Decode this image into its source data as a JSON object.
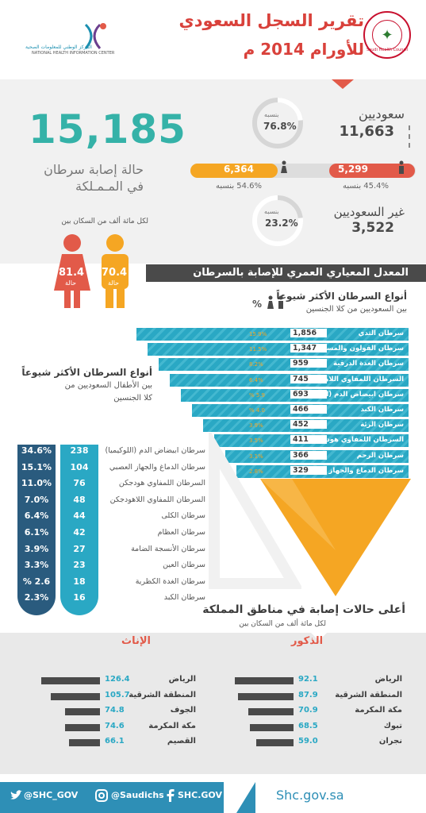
{
  "header": {
    "title_line1": "تقرير السجل السعودي",
    "title_line2": "للأورام  2014 م",
    "shc_logo_text": "Saudi Health Council",
    "nhic_text_ar": "المركز الوطني للمعلومات الصحية",
    "nhic_text_en": "NATIONAL HEALTH INFORMATION CENTER"
  },
  "summary": {
    "total": "15,185",
    "total_label_line1": "حالة إصابة سرطان",
    "total_label_line2": "في المـمـلكة",
    "saudi_label": "سعوديين",
    "saudi_value": "11,663",
    "saudi_pct_label": "بنسبه",
    "saudi_pct": "76.8%",
    "female_value": "6,364",
    "male_value": "5,299",
    "female_pct": "54.6% بنسبه",
    "male_pct": "45.4% بنسبه",
    "nonsaudi_label": "غير السعوديين",
    "nonsaudi_value": "3,522",
    "nonsaudi_pct_label": "بنسبه",
    "nonsaudi_pct": "23.2%",
    "per100k_label": "لكل مائة ألف من السكان بين",
    "female_rate": "81.4",
    "male_rate": "70.4",
    "rate_unit": "حالة"
  },
  "strip_title": "المعدل المعياري العمري للإصابة بالسرطان",
  "types": {
    "title": "أنواع السرطان الأكثر شيوعاً",
    "subtitle": "بين السعوديين من كلا الجنسين",
    "pct_sign": "%",
    "rows": [
      {
        "label": "سرطان الثدي",
        "value": "1,856",
        "pct": "15.9%"
      },
      {
        "label": "سرطان القولون والمستقيم",
        "value": "1,347",
        "pct": "11.5%"
      },
      {
        "label": "سرطان الغدة الدرقية",
        "value": "959",
        "pct": "8.2%"
      },
      {
        "label": "السرطان اللمفاوي اللاهودجكن",
        "value": "745",
        "pct": "6.4%"
      },
      {
        "label": "سرطان ابيضاض الدم (اللوكيميا)",
        "value": "693",
        "pct": "% 5.9"
      },
      {
        "label": "سرطان الكبد",
        "value": "466",
        "pct": "% 4.0"
      },
      {
        "label": "سرطان الرئة",
        "value": "452",
        "pct": "3.9%"
      },
      {
        "label": "السرطان اللمفاوي هودجكن",
        "value": "411",
        "pct": "3.5%"
      },
      {
        "label": "سرطان الرحم",
        "value": "366",
        "pct": "3.1%"
      },
      {
        "label": "سرطان الدماغ والجهاز العصبي",
        "value": "329",
        "pct": "2.8%"
      }
    ]
  },
  "kids": {
    "title": "أنواع السرطان الأكثر شيوعاً",
    "subtitle_line1": "بين الأطفال السعوديين من",
    "subtitle_line2": "كلا الجنسين",
    "rows": [
      {
        "label": "سرطان ابيضاض الدم (اللوكيميا)",
        "num": "238",
        "pct": "34.6%"
      },
      {
        "label": "سرطان الدماغ والجهاز العصبي",
        "num": "104",
        "pct": "15.1%"
      },
      {
        "label": "السرطان اللمفاوي هودجكن",
        "num": "76",
        "pct": "11.0%"
      },
      {
        "label": "السرطان اللمفاوي اللاهودجكن",
        "num": "48",
        "pct": "7.0%"
      },
      {
        "label": "سرطان الكلى",
        "num": "44",
        "pct": "6.4%"
      },
      {
        "label": "سرطان العظام",
        "num": "42",
        "pct": "6.1%"
      },
      {
        "label": "سرطان الأنسجة الضامة",
        "num": "27",
        "pct": "3.9%"
      },
      {
        "label": "سرطان العين",
        "num": "23",
        "pct": "3.3%"
      },
      {
        "label": "سرطان الغدة الكظرية",
        "num": "18",
        "pct": "% 2.6"
      },
      {
        "label": "سرطان الكبد",
        "num": "16",
        "pct": "2.3%"
      }
    ]
  },
  "regions": {
    "title": "أعلى حالات إصابة في مناطق المملكة",
    "subtitle": "لكل مائة ألف من السكان بين",
    "males_label": "الذكور",
    "females_label": "الإناث",
    "males": [
      {
        "label": "الرياض",
        "value": 92.1
      },
      {
        "label": "المنطقة الشرقية",
        "value": 87.9
      },
      {
        "label": "مكة المكرمة",
        "value": 70.9
      },
      {
        "label": "تبوك",
        "value": 68.5
      },
      {
        "label": "نجران",
        "value": 59.0
      }
    ],
    "females": [
      {
        "label": "الرياض",
        "value": 126.4
      },
      {
        "label": "المنطقة الشرقية",
        "value": 105.7
      },
      {
        "label": "الجوف",
        "value": 74.8
      },
      {
        "label": "مكة المكرمة",
        "value": 74.6
      },
      {
        "label": "القصيم",
        "value": 66.1
      }
    ],
    "males_text": [
      "92.1",
      "87.9",
      "70.9",
      "68.5",
      "59.0"
    ],
    "females_text": [
      "126.4",
      "105.7",
      "74.8",
      "74.6",
      "66.1"
    ]
  },
  "footer": {
    "twitter": "@SHC_GOV",
    "instagram": "@Saudichs",
    "facebook": "SHC.GOV",
    "site": "Shc.gov.sa"
  },
  "colors": {
    "red": "#e25a49",
    "orange": "#f5a623",
    "teal": "#35b2a8",
    "blue": "#2aa8c4",
    "navy": "#2a5b7e",
    "footer": "#2e8fb6"
  }
}
